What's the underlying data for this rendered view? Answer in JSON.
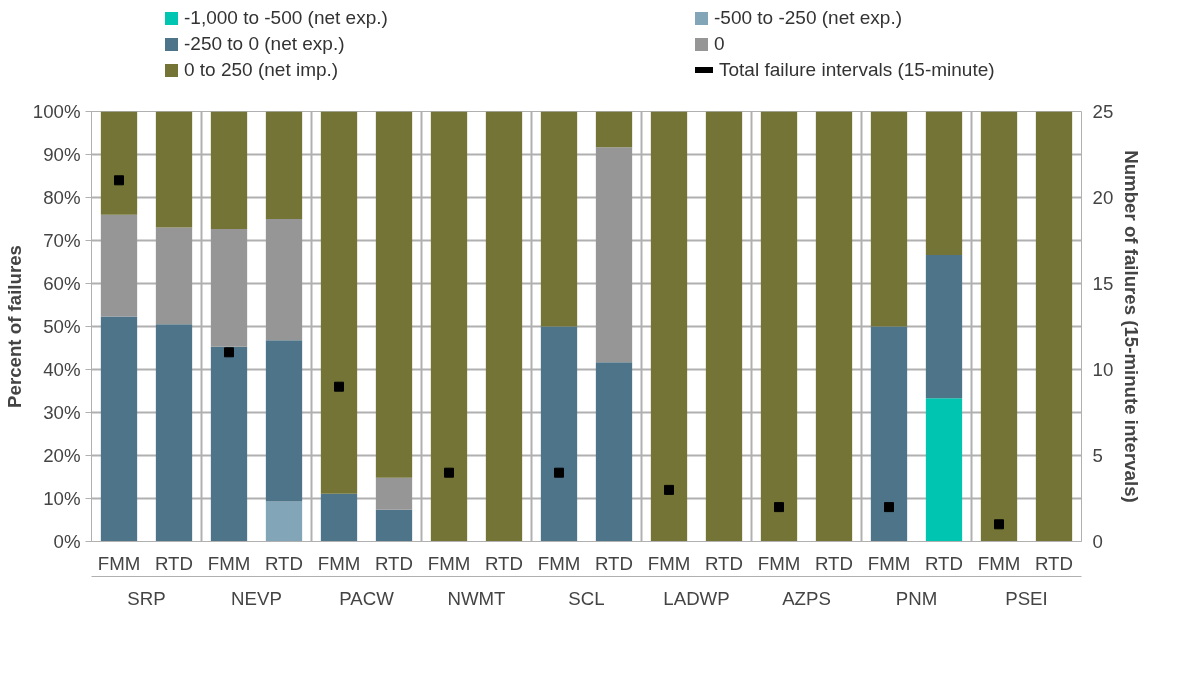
{
  "chart_data": {
    "type": "bar",
    "stacked": true,
    "categories": [
      "FMM",
      "RTD",
      "FMM",
      "RTD",
      "FMM",
      "RTD",
      "FMM",
      "RTD",
      "FMM",
      "RTD",
      "FMM",
      "RTD",
      "FMM",
      "RTD",
      "FMM",
      "RTD",
      "FMM",
      "RTD"
    ],
    "annotations": [
      "SRP",
      "NEVP",
      "PACW",
      "NWMT",
      "SCL",
      "LADWP",
      "AZPS",
      "PNM",
      "PSEI"
    ],
    "series": [
      {
        "name": "-1,000 to -500 (net exp.)",
        "color": "#00c5b1",
        "values": [
          0,
          0,
          0,
          0,
          0,
          0,
          0,
          0,
          0,
          0,
          0,
          0,
          0,
          0,
          0,
          33.3,
          0,
          0
        ]
      },
      {
        "name": "-500 to -250 (net exp.)",
        "color": "#82a6b8",
        "values": [
          0,
          0,
          0,
          9.3,
          0,
          0,
          0,
          0,
          0,
          0,
          0,
          0,
          0,
          0,
          0,
          0,
          0,
          0
        ]
      },
      {
        "name": "-250 to 0 (net exp.)",
        "color": "#4e7489",
        "values": [
          52.3,
          50.5,
          45.3,
          37.5,
          11.1,
          7.4,
          0,
          0,
          50,
          41.7,
          0,
          0,
          0,
          0,
          50,
          33.3,
          0,
          0
        ]
      },
      {
        "name": "0",
        "color": "#969696",
        "values": [
          23.7,
          22.5,
          27.4,
          28.2,
          0,
          7.4,
          0,
          0,
          0,
          50,
          0,
          0,
          0,
          0,
          0,
          0,
          0,
          0
        ]
      },
      {
        "name": "0 to 250 (net imp.)",
        "color": "#737436",
        "values": [
          24,
          27,
          27.3,
          25,
          88.9,
          85.2,
          100,
          100,
          50,
          8.3,
          100,
          100,
          100,
          100,
          50,
          33.4,
          100,
          100
        ]
      },
      {
        "name": "Total failure intervals (15-minute)",
        "type": "scatter",
        "axis": "y2",
        "color": "#000000",
        "values": [
          21,
          null,
          11,
          null,
          9,
          null,
          4,
          null,
          4,
          null,
          3,
          null,
          2,
          null,
          2,
          null,
          1,
          null
        ]
      }
    ],
    "ylabel": "Percent of failures",
    "y2label": "Number of failures (15-minute intervals)",
    "ylim": [
      0,
      100
    ],
    "yticks": [
      {
        "value": 0,
        "label": "0%"
      },
      {
        "value": 10,
        "label": "10%"
      },
      {
        "value": 20,
        "label": "20%"
      },
      {
        "value": 30,
        "label": "30%"
      },
      {
        "value": 40,
        "label": "40%"
      },
      {
        "value": 50,
        "label": "50%"
      },
      {
        "value": 60,
        "label": "60%"
      },
      {
        "value": 70,
        "label": "70%"
      },
      {
        "value": 80,
        "label": "80%"
      },
      {
        "value": 90,
        "label": "90%"
      },
      {
        "value": 100,
        "label": "100%"
      }
    ],
    "y2lim": [
      0,
      25
    ],
    "y2ticks": [
      0,
      5,
      10,
      15,
      20,
      25
    ],
    "grid": true,
    "legend": "top"
  }
}
